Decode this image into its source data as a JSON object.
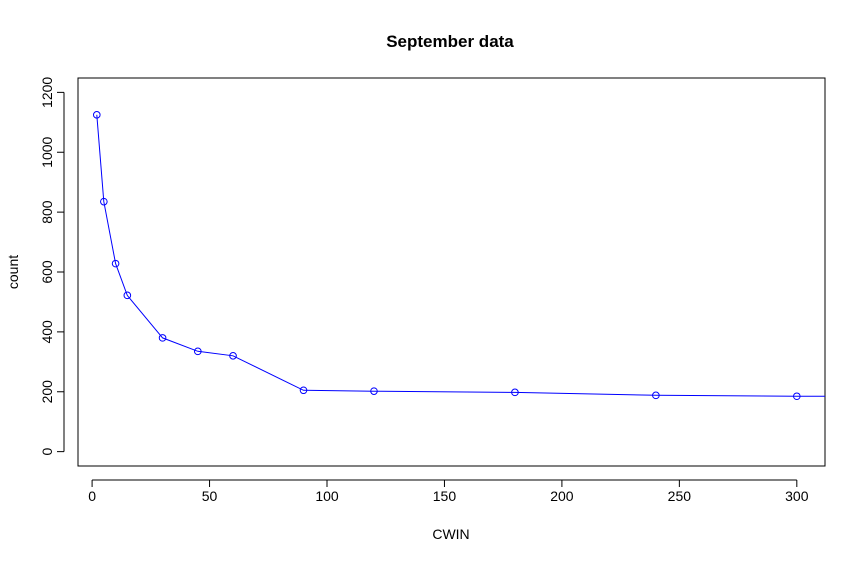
{
  "chart_data": {
    "type": "line",
    "title": "September data",
    "xlabel": "CWIN",
    "ylabel": "count",
    "xlim": [
      -6,
      312
    ],
    "ylim": [
      -48,
      1248
    ],
    "xticks": [
      0,
      50,
      100,
      150,
      200,
      250,
      300
    ],
    "yticks": [
      0,
      200,
      400,
      600,
      800,
      1000,
      1200
    ],
    "grid": false,
    "line_color": "#0000ff",
    "marker": "open-circle",
    "series": [
      {
        "x": [
          2,
          5,
          10,
          15,
          30,
          45,
          60,
          90,
          120,
          180,
          240,
          300,
          312
        ],
        "values": [
          1125,
          835,
          628,
          522,
          380,
          335,
          320,
          205,
          202,
          198,
          188,
          185,
          185
        ],
        "markers": [
          true,
          true,
          true,
          true,
          true,
          true,
          true,
          true,
          true,
          true,
          true,
          true,
          false
        ]
      }
    ]
  }
}
